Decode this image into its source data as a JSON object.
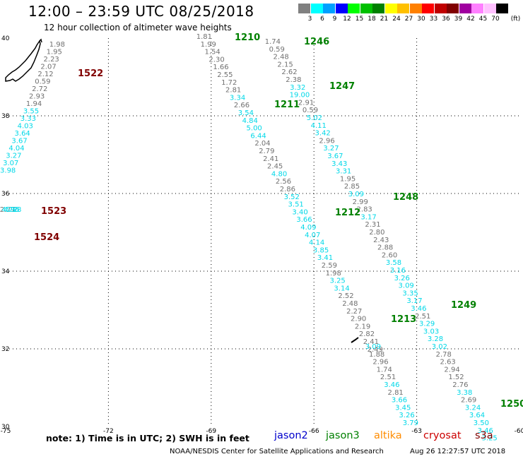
{
  "header": {
    "title": "12:00 – 23:59 UTC 08/25/2018",
    "subtitle": "12 hour collection of altimeter wave heights"
  },
  "legend": {
    "unit": "(ft)",
    "bins": [
      {
        "color": "#808080",
        "label": "3"
      },
      {
        "color": "#00ffff",
        "label": "6"
      },
      {
        "color": "#00a0ff",
        "label": "9"
      },
      {
        "color": "#0000ff",
        "label": "12"
      },
      {
        "color": "#00ff00",
        "label": "15"
      },
      {
        "color": "#00c000",
        "label": "18"
      },
      {
        "color": "#008000",
        "label": "21"
      },
      {
        "color": "#ffff00",
        "label": "24"
      },
      {
        "color": "#ffc000",
        "label": "27"
      },
      {
        "color": "#ff8000",
        "label": "30"
      },
      {
        "color": "#ff0000",
        "label": "33"
      },
      {
        "color": "#c00000",
        "label": "36"
      },
      {
        "color": "#800000",
        "label": "39"
      },
      {
        "color": "#a000a0",
        "label": "42"
      },
      {
        "color": "#ff80ff",
        "label": "45"
      },
      {
        "color": "#ffc0ff",
        "label": "70"
      },
      {
        "color": "#000000",
        "label": ""
      }
    ]
  },
  "map": {
    "lon_range": [
      -75,
      -60
    ],
    "lat_range": [
      30,
      40
    ],
    "lon_ticks": [
      "-75",
      "-72",
      "-69",
      "-66",
      "-63",
      "-60"
    ],
    "lat_ticks": [
      "40",
      "38",
      "36",
      "34",
      "32",
      "30"
    ],
    "colors": {
      "gray": "#707070",
      "cyan": "#00d8e8",
      "jason3": "#008000",
      "cryosat": "#800000"
    }
  },
  "passes": [
    {
      "label": "1522",
      "color": "cryosat",
      "values": [
        "1.98",
        "1.95",
        "2.23",
        "2.07",
        "2.12",
        "0.59",
        "2.72",
        "2.93",
        "1.94",
        "3.55",
        "3.33",
        "4.03",
        "3.64",
        "3.67",
        "4.04",
        "3.27",
        "3.07",
        "3.98"
      ]
    },
    {
      "label": "1523",
      "color": "cryosat",
      "values": [
        "2.77",
        "4.72",
        "4.95",
        "5.98"
      ]
    },
    {
      "label": "1524",
      "color": "cryosat",
      "values": []
    },
    {
      "label": "1210",
      "color": "jason3",
      "values": [
        "1.81",
        "1.99",
        "1.54",
        "2.30",
        "1.66",
        "2.55",
        "1.72",
        "2.81",
        "3.34",
        "2.66",
        "3.54",
        "4.84",
        "5.00",
        "6.44",
        "2.04",
        "2.79",
        "2.41",
        "2.45",
        "4.80",
        "2.56",
        "2.86",
        "3.52",
        "3.51",
        "3.40",
        "3.66",
        "4.09",
        "4.07",
        "4.14",
        "3.85",
        "3.41",
        "2.59",
        "1.98",
        "3.25",
        "3.14",
        "2.52",
        "2.48",
        "2.27",
        "2.90",
        "2.19",
        "2.82",
        "2.41",
        "2.49"
      ]
    },
    {
      "label": "1246",
      "color": "jason3",
      "values": [
        "1.74",
        "0.59",
        "2.48",
        "2.15",
        "2.62",
        "2.38",
        "3.32",
        "19.00",
        "2.91",
        "0.59",
        "5.02",
        "4.11",
        "3.42",
        "2.96",
        "3.27",
        "3.67",
        "3.43",
        "3.31",
        "1.95",
        "2.85",
        "3.09",
        "2.99",
        "2.83",
        "3.17",
        "2.31",
        "2.80",
        "2.43",
        "2.88",
        "2.60",
        "3.58",
        "3.16",
        "3.26",
        "3.09",
        "3.35",
        "3.17",
        "3.46",
        "2.51",
        "3.29",
        "3.03",
        "3.28",
        "3.02",
        "2.78",
        "2.63",
        "2.94",
        "1.52",
        "2.76",
        "3.38",
        "2.69",
        "3.24",
        "3.64",
        "3.50",
        "3.46",
        "3.25"
      ]
    },
    {
      "label": "1211",
      "color": "jason3",
      "values": []
    },
    {
      "label": "1212",
      "color": "jason3",
      "values": []
    },
    {
      "label": "1213",
      "color": "jason3",
      "values": [
        "3.09",
        "1.88",
        "2.96",
        "1.74",
        "2.51",
        "3.46",
        "2.81",
        "3.66",
        "3.45",
        "3.26",
        "3.79"
      ]
    },
    {
      "label": "1247",
      "color": "jason3",
      "values": []
    },
    {
      "label": "1248",
      "color": "jason3",
      "values": []
    },
    {
      "label": "1249",
      "color": "jason3",
      "values": []
    },
    {
      "label": "1250",
      "color": "jason3",
      "values": []
    }
  ],
  "footer": {
    "note": "note:  1) Time is in UTC;  2) SWH is in feet",
    "missions": [
      {
        "name": "jason2",
        "color": "#0000cc"
      },
      {
        "name": "jason3",
        "color": "#008000"
      },
      {
        "name": "altika",
        "color": "#ff8c00"
      },
      {
        "name": "cryosat",
        "color": "#cc0000"
      },
      {
        "name": "s3a",
        "color": "#800000"
      }
    ],
    "credit": "NOAA/NESDIS Center for Satellite Applications and Research",
    "timestamp": "Aug 26 12:27:57 UTC 2018"
  }
}
